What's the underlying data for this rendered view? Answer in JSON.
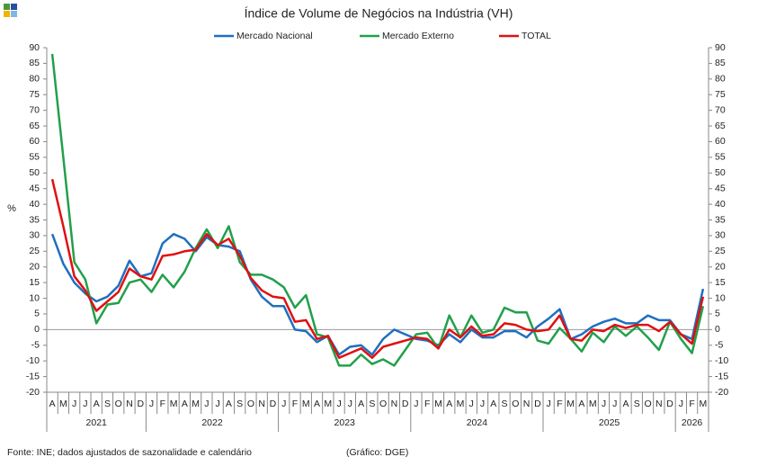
{
  "chart_data": {
    "type": "line",
    "title": "Índice de Volume de Negócios na Indústria (VH)",
    "ylabel": "%",
    "source": "Fonte: INE; dados ajustados de sazonalidade e calendário",
    "credit": "(Gráfico: DGE)",
    "category_groups": [
      {
        "label": "2021",
        "categories": [
          "A",
          "M",
          "J",
          "J",
          "A",
          "S",
          "O",
          "N",
          "D"
        ]
      },
      {
        "label": "2022",
        "categories": [
          "J",
          "F",
          "M",
          "A",
          "M",
          "J",
          "J",
          "A",
          "S",
          "O",
          "N",
          "D"
        ]
      },
      {
        "label": "2023",
        "categories": [
          "J",
          "F",
          "M",
          "A",
          "M",
          "J",
          "J",
          "A",
          "S",
          "O",
          "N",
          "D"
        ]
      },
      {
        "label": "2024",
        "categories": [
          "J",
          "F",
          "M",
          "A",
          "M",
          "J",
          "J",
          "A",
          "S",
          "O",
          "N",
          "D"
        ]
      },
      {
        "label": "2025",
        "categories": [
          "J",
          "F",
          "M",
          "A",
          "M",
          "J",
          "J",
          "A",
          "S",
          "O",
          "N",
          "D"
        ]
      },
      {
        "label": "2026",
        "categories": [
          "J",
          "F",
          "M"
        ]
      }
    ],
    "ylim": [
      -20,
      90
    ],
    "yticks": [
      90,
      85,
      80,
      75,
      70,
      65,
      60,
      55,
      50,
      45,
      40,
      35,
      30,
      25,
      20,
      15,
      10,
      5,
      0,
      -5,
      -10,
      -15,
      -20
    ],
    "series": [
      {
        "name": "Mercado Nacional",
        "color": "#1f6fbf",
        "values": [
          30.5,
          21,
          15,
          11.5,
          9,
          10.5,
          14,
          22,
          17,
          18,
          27.5,
          30.5,
          29,
          25,
          29.5,
          27,
          26.5,
          25,
          16,
          10.5,
          7.5,
          7.5,
          0,
          -0.5,
          -4,
          -2,
          -8,
          -5.5,
          -5,
          -8,
          -3,
          0,
          -1.5,
          -3,
          -3.5,
          -5,
          -1.5,
          -4,
          0,
          -2.5,
          -2.5,
          -0.5,
          -0.5,
          -2.5,
          1,
          3.5,
          6.5,
          -3,
          -1.5,
          1,
          2.5,
          3.5,
          2,
          2,
          4.5,
          3,
          3,
          -1.5,
          -3,
          13
        ]
      },
      {
        "name": "Mercado Externo",
        "color": "#22a04b",
        "values": [
          88,
          55,
          21.5,
          16,
          2,
          8,
          8.5,
          15,
          16,
          12,
          17.5,
          13.5,
          18.5,
          26,
          32,
          26,
          33,
          21.5,
          17.5,
          17.5,
          16,
          13.5,
          7,
          11,
          -1.5,
          -2.5,
          -11.5,
          -11.5,
          -8,
          -11,
          -9.5,
          -11.5,
          -6.5,
          -1.5,
          -1,
          -6,
          4.5,
          -2.5,
          4.5,
          -1,
          0,
          7,
          5.5,
          5.5,
          -3.5,
          -4.5,
          0.5,
          -3,
          -7,
          -1,
          -4,
          1,
          -2,
          1,
          -2.5,
          -6.5,
          2.5,
          -3,
          -7.5,
          7.5
        ]
      },
      {
        "name": "TOTAL",
        "color": "#e01010",
        "values": [
          48,
          33,
          17,
          12.5,
          6,
          9,
          12,
          19.5,
          17,
          16,
          23.5,
          24,
          25,
          25.5,
          30.5,
          27,
          29,
          23.5,
          16.5,
          12.5,
          10.5,
          10,
          2.5,
          3,
          -3,
          -2,
          -9,
          -7.5,
          -6,
          -9,
          -5.5,
          -4.5,
          -3.5,
          -2.5,
          -3,
          -6,
          0,
          -2.5,
          1,
          -2,
          -1.5,
          2,
          1.5,
          0,
          -0.5,
          0,
          4.5,
          -3,
          -3.5,
          0,
          -0.5,
          1.5,
          0.5,
          1.5,
          1.5,
          -0.5,
          2.5,
          -1.5,
          -4.5,
          10.5
        ]
      }
    ]
  }
}
